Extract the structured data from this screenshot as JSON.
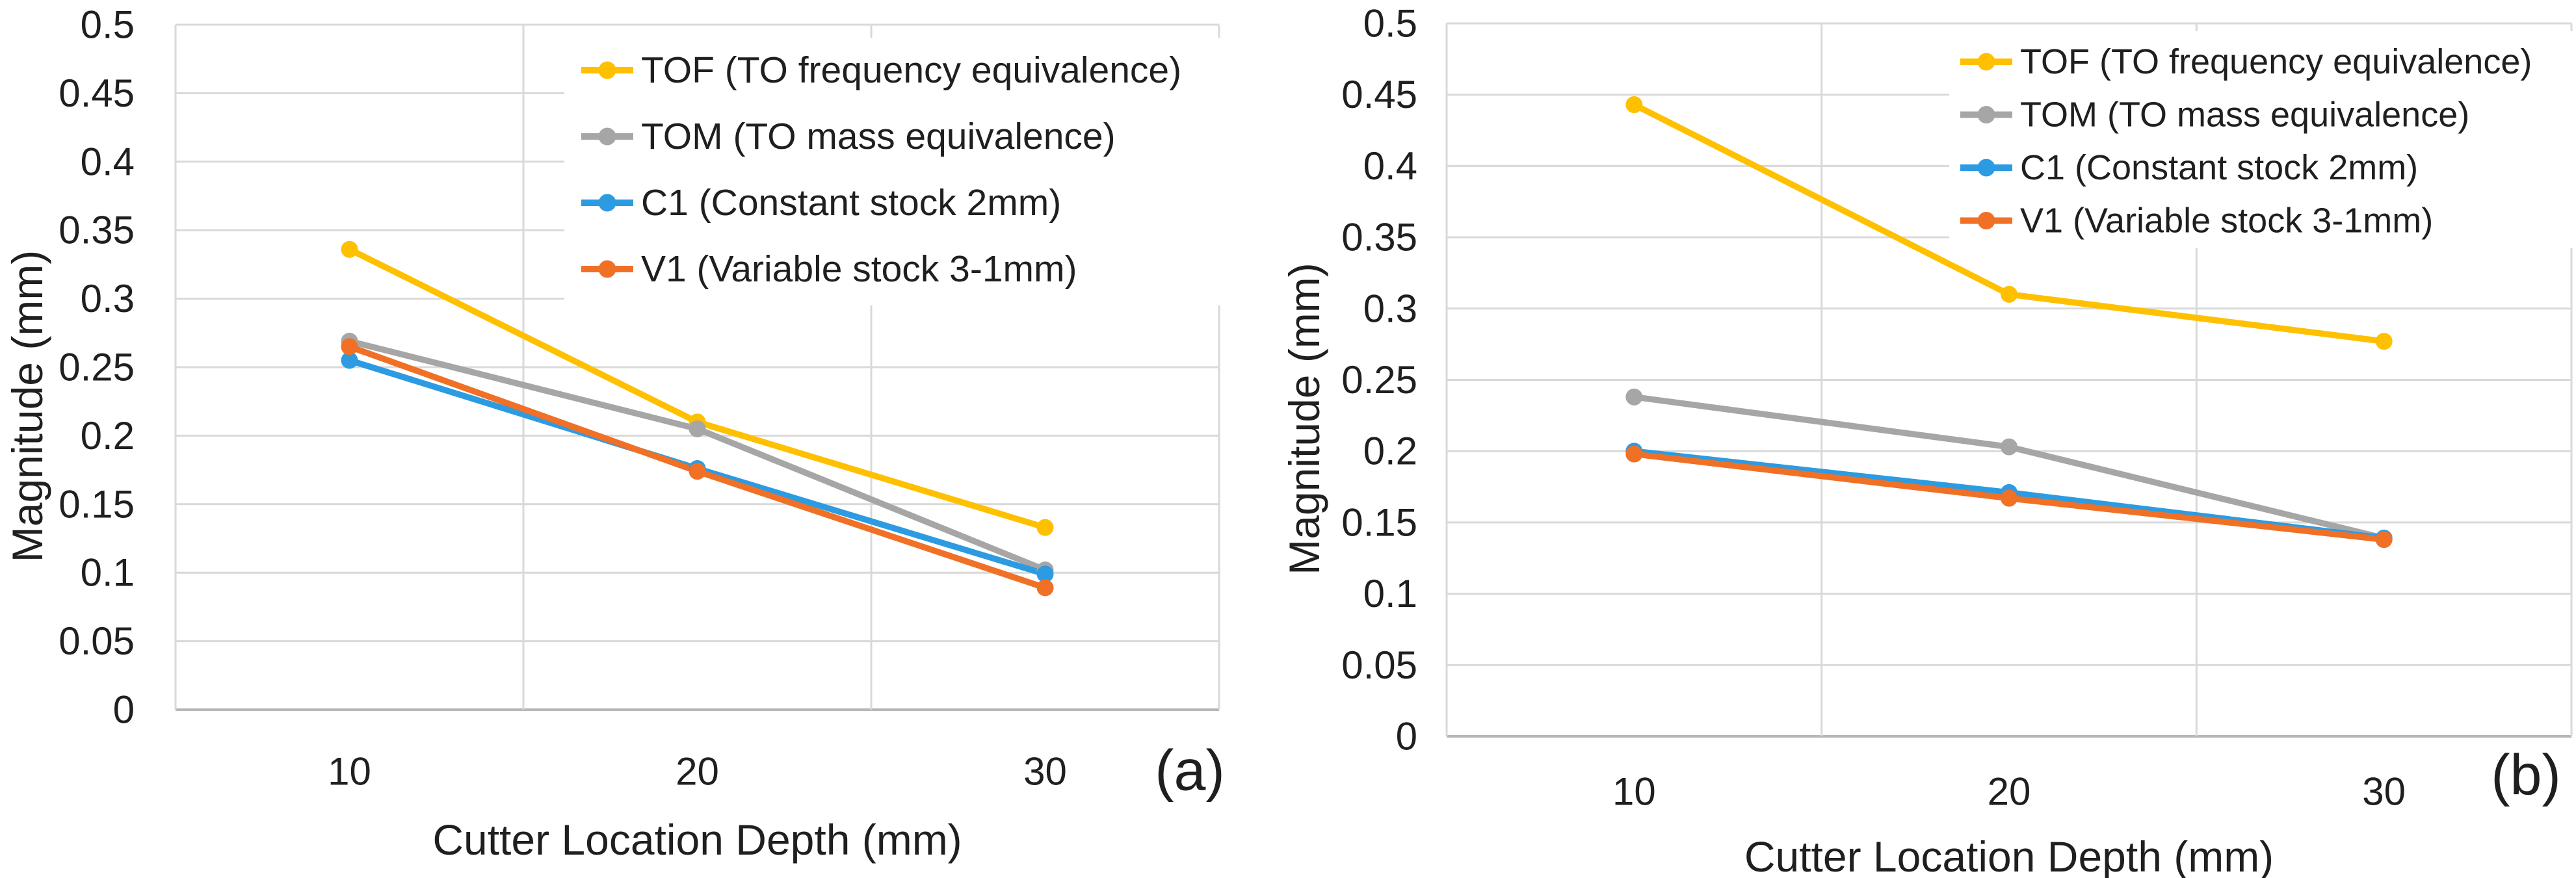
{
  "figure": {
    "background": "#ffffff",
    "text_color": "#1f1f1f",
    "gridline_color": "#d9d9d9",
    "axis_line_color": "#b7b7b7"
  },
  "chart_data": [
    {
      "type": "line",
      "panel_label": "(a)",
      "xlabel": "Cutter Location Depth (mm)",
      "ylabel": "Magnitude (mm)",
      "categories": [
        10,
        20,
        30
      ],
      "x_tick_labels": [
        "10",
        "20",
        "30"
      ],
      "ylim": [
        0,
        0.5
      ],
      "y_tick_step": 0.05,
      "y_tick_labels": [
        "0",
        "0.05",
        "0.1",
        "0.15",
        "0.2",
        "0.25",
        "0.3",
        "0.35",
        "0.4",
        "0.45",
        "0.5"
      ],
      "grid": true,
      "legend_position": "top-right-inside",
      "marker": "circle",
      "series": [
        {
          "name": "TOF (TO frequency equivalence)",
          "color": "#FFC000",
          "values": [
            0.336,
            0.21,
            0.133
          ]
        },
        {
          "name": "TOM (TO mass equivalence)",
          "color": "#A6A6A6",
          "values": [
            0.269,
            0.205,
            0.102
          ]
        },
        {
          "name": "C1 (Constant stock 2mm)",
          "color": "#2D9BE2",
          "values": [
            0.255,
            0.176,
            0.099
          ]
        },
        {
          "name": "V1 (Variable stock 3-1mm)",
          "color": "#F07026",
          "values": [
            0.265,
            0.174,
            0.089
          ]
        }
      ]
    },
    {
      "type": "line",
      "panel_label": "(b)",
      "xlabel": "Cutter Location Depth (mm)",
      "ylabel": "Magnitude (mm)",
      "categories": [
        10,
        20,
        30
      ],
      "x_tick_labels": [
        "10",
        "20",
        "30"
      ],
      "ylim": [
        0,
        0.5
      ],
      "y_tick_step": 0.05,
      "y_tick_labels": [
        "0",
        "0.05",
        "0.1",
        "0.15",
        "0.2",
        "0.25",
        "0.3",
        "0.35",
        "0.4",
        "0.45",
        "0.5"
      ],
      "grid": true,
      "legend_position": "top-right-inside",
      "marker": "circle",
      "series": [
        {
          "name": "TOF (TO frequency equivalence)",
          "color": "#FFC000",
          "values": [
            0.443,
            0.31,
            0.277
          ]
        },
        {
          "name": "TOM (TO mass equivalence)",
          "color": "#A6A6A6",
          "values": [
            0.238,
            0.203,
            0.139
          ]
        },
        {
          "name": "C1 (Constant stock 2mm)",
          "color": "#2D9BE2",
          "values": [
            0.2,
            0.171,
            0.139
          ]
        },
        {
          "name": "V1 (Variable stock 3-1mm)",
          "color": "#F07026",
          "values": [
            0.198,
            0.167,
            0.138
          ]
        }
      ]
    }
  ]
}
